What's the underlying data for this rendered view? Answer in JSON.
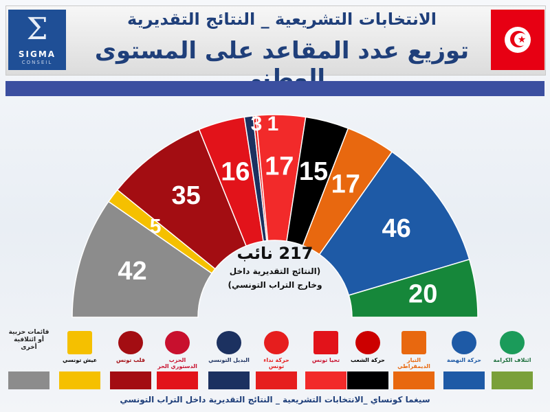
{
  "header": {
    "title_line1": "الانتخابات التشريعية _ النتائج التقديرية",
    "title_line2": "توزيع عدد المقاعد على المستوى الوطني",
    "logo_name": "SIGMA",
    "logo_sub": "CONSEIL"
  },
  "center": {
    "total_label": "217 نائب",
    "note_line1": "(النتائج التقديرية داخل",
    "note_line2": "وخارج التراب التونسي)"
  },
  "footer": {
    "text": "سيغما كونساي _الانتخابات التشريعية _ النتائج التقديرية داخل التراب التونسي"
  },
  "colors": {
    "header_bar": "#3b4fa0",
    "title": "#1f3f7a",
    "brand_blue": "#1f4f96",
    "flag_red": "#e70013"
  },
  "chart_data": {
    "type": "pie",
    "subtype": "semicircle-parliament",
    "total": 217,
    "series": [
      {
        "value": 42,
        "color": "#8c8c8c",
        "show_label": true
      },
      {
        "value": 5,
        "color": "#f5c000",
        "show_label": true
      },
      {
        "value": 35,
        "color": "#a30d12",
        "show_label": true
      },
      {
        "value": 16,
        "color": "#e2131a",
        "show_label": true
      },
      {
        "value": 3,
        "color": "#1c3160",
        "show_label": false
      },
      {
        "value": 1,
        "color": "#e61e1e",
        "show_label": false
      },
      {
        "value": 17,
        "color": "#f22a2a",
        "show_label": true
      },
      {
        "value": 15,
        "color": "#000000",
        "show_label": true
      },
      {
        "value": 17,
        "color": "#e8680f",
        "show_label": true
      },
      {
        "value": 46,
        "color": "#1e5aa6",
        "show_label": true
      },
      {
        "value": 20,
        "color": "#16873a",
        "show_label": true
      }
    ],
    "top_labels": [
      "3",
      "1"
    ]
  },
  "legend": [
    {
      "label_lines": [
        "قائمات حزبية",
        "أو ائتلافية",
        "أخرى"
      ],
      "swatch": "#8c8c8c",
      "logo_text": "",
      "logo_color": "#555555",
      "logo_icon": "none"
    },
    {
      "label_lines": [],
      "swatch": "#f5c000",
      "logo_text": "عيش تونسي",
      "logo_color": "#000000",
      "logo_icon": "yellow-badge"
    },
    {
      "label_lines": [],
      "swatch": "#a30d12",
      "logo_text": "قلب تونس",
      "logo_color": "#a30d12",
      "logo_icon": "lion-head"
    },
    {
      "label_lines": [],
      "swatch": "#e2131a",
      "logo_text": "الحزب الدستوري الحر",
      "logo_color": "#c8102e",
      "logo_icon": "torch-figure"
    },
    {
      "label_lines": [],
      "swatch": "#1c3160",
      "logo_text": "البديل التونسي",
      "logo_color": "#1c3160",
      "logo_icon": "stopwatch"
    },
    {
      "label_lines": [],
      "swatch": "#e61e1e",
      "logo_text": "حركة نداء تونس",
      "logo_color": "#e61e1e",
      "logo_icon": "palm-tree"
    },
    {
      "label_lines": [],
      "swatch": "#f22a2a",
      "logo_text": "تحيا تونس",
      "logo_color": "#ffffff",
      "logo_icon": "victory-hand"
    },
    {
      "label_lines": [],
      "swatch": "#000000",
      "logo_text": "حركة الشعب",
      "logo_color": "#000000",
      "logo_icon": "red-swoosh"
    },
    {
      "label_lines": [],
      "swatch": "#e8680f",
      "logo_text": "التيار الديمقراطي",
      "logo_color": "#e8680f",
      "logo_icon": "bicycle"
    },
    {
      "label_lines": [],
      "swatch": "#1e5aa6",
      "logo_text": "حركة النهضة",
      "logo_color": "#1e5aa6",
      "logo_icon": "dove-circle"
    },
    {
      "label_lines": [],
      "swatch": "#7aa03a",
      "logo_text": "ائتلاف الكرامة",
      "logo_color": "#1b6e3b",
      "logo_icon": "linked-rings"
    }
  ]
}
